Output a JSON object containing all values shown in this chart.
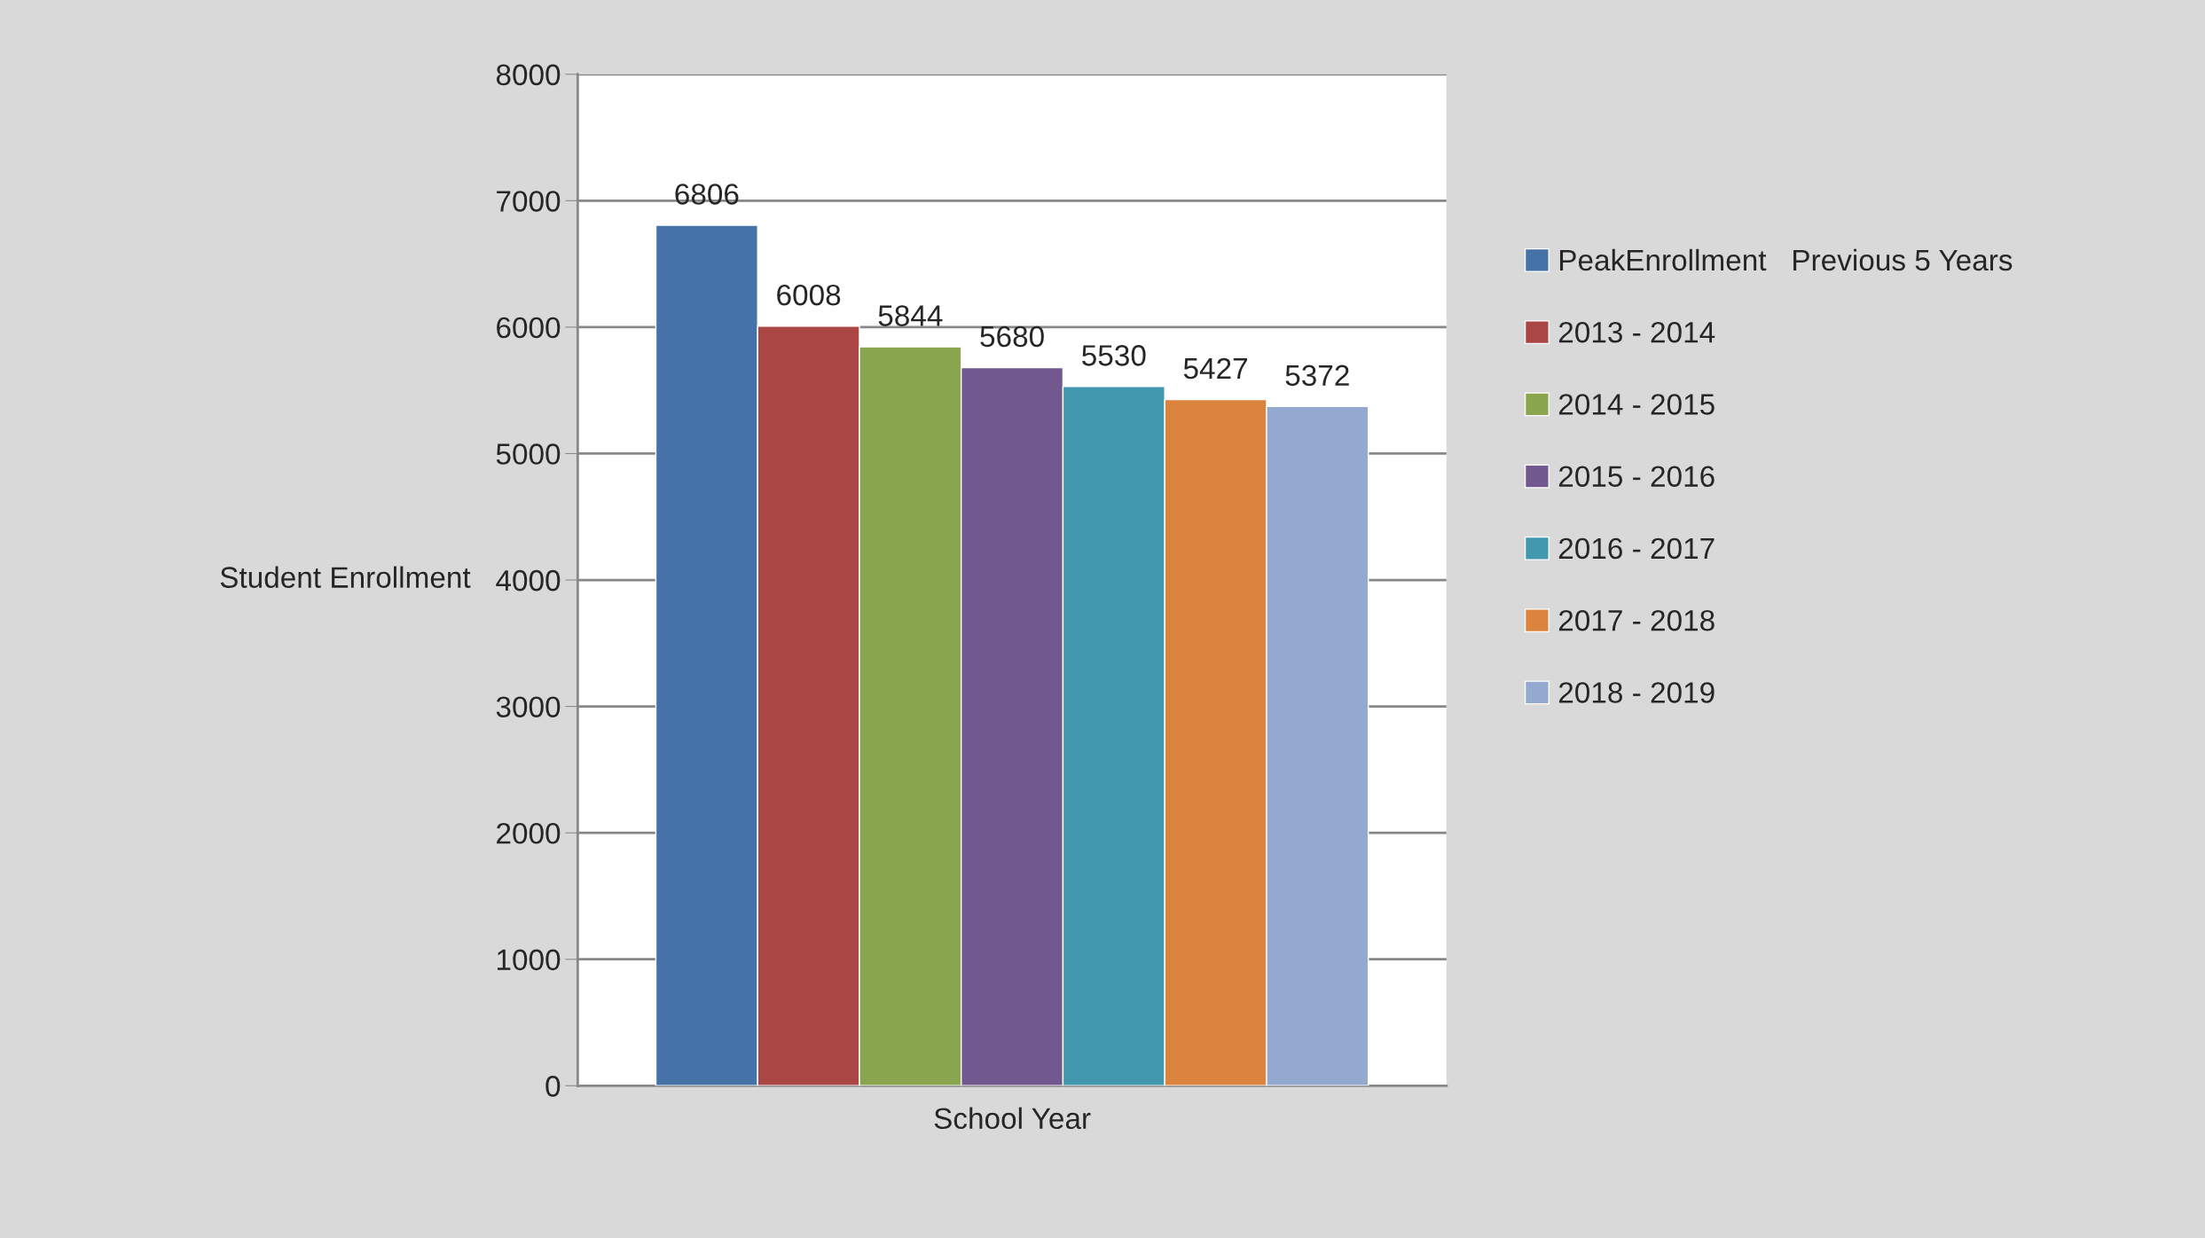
{
  "chart_data": {
    "type": "bar",
    "xlabel": "School Year",
    "ylabel": "Student Enrollment",
    "categories": [
      null
    ],
    "series": [
      {
        "name": "PeakEnrollment   Previous 5 Years",
        "color": "#4572a7",
        "values": [
          6806
        ]
      },
      {
        "name": "2013 - 2014",
        "color": "#aa4643",
        "values": [
          6008
        ]
      },
      {
        "name": "2014 - 2015",
        "color": "#89a54e",
        "values": [
          5844
        ]
      },
      {
        "name": "2015 - 2016",
        "color": "#71588f",
        "values": [
          5680
        ]
      },
      {
        "name": "2016 - 2017",
        "color": "#4198af",
        "values": [
          5530
        ]
      },
      {
        "name": "2017 - 2018",
        "color": "#db843d",
        "values": [
          5427
        ]
      },
      {
        "name": "2018 - 2019",
        "color": "#93a9cf",
        "values": [
          5372
        ]
      }
    ],
    "ylim": [
      0,
      8000
    ],
    "yticks": [
      0,
      1000,
      2000,
      3000,
      4000,
      5000,
      6000,
      7000,
      8000
    ],
    "grid": "y",
    "legend": "right",
    "data_labels": true
  }
}
